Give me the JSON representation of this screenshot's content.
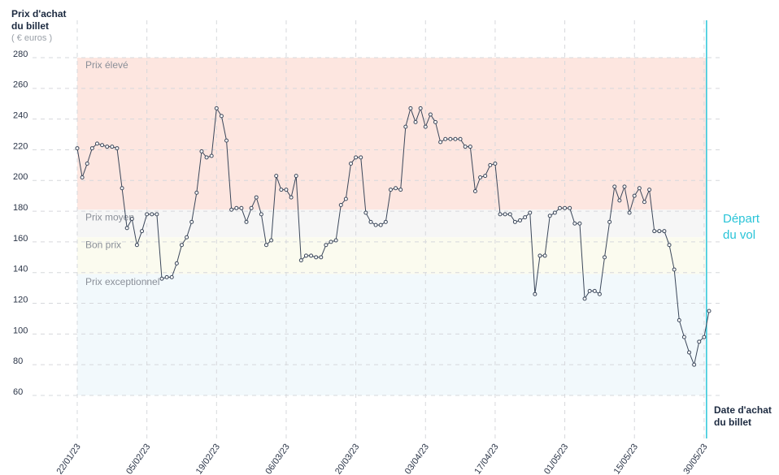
{
  "chart_data": {
    "type": "line",
    "y_label": [
      "Prix d'achat",
      "du billet"
    ],
    "y_unit": "( € euros )",
    "x_label": [
      "Date d'achat",
      "du billet"
    ],
    "annotation": {
      "text": [
        "Départ",
        "du vol"
      ],
      "at": "30/05/23",
      "color": "#29c4d8"
    },
    "ylim": [
      60,
      280
    ],
    "yticks": [
      60,
      80,
      100,
      120,
      140,
      160,
      180,
      200,
      220,
      240,
      260,
      280
    ],
    "grid": true,
    "bands": [
      {
        "label": "Prix élevé",
        "from": 181,
        "to": 280,
        "color": "#fde6e0"
      },
      {
        "label": "Prix moyen",
        "from": 163,
        "to": 181,
        "color": "#f6f6f6"
      },
      {
        "label": "Bon prix",
        "from": 139,
        "to": 163,
        "color": "#fbfbef"
      },
      {
        "label": "Prix exceptionnel",
        "from": 60,
        "to": 139,
        "color": "#f2f9fc"
      }
    ],
    "categories": [
      "22/01/23",
      null,
      null,
      null,
      null,
      null,
      null,
      null,
      null,
      null,
      null,
      null,
      null,
      null,
      "05/02/23",
      null,
      null,
      null,
      null,
      null,
      null,
      null,
      null,
      null,
      null,
      null,
      null,
      null,
      "19/02/23",
      null,
      null,
      null,
      null,
      null,
      null,
      null,
      null,
      null,
      null,
      null,
      null,
      null,
      "06/03/23",
      null,
      null,
      null,
      null,
      null,
      null,
      null,
      null,
      null,
      null,
      null,
      null,
      null,
      "20/03/23",
      null,
      null,
      null,
      null,
      null,
      null,
      null,
      null,
      null,
      null,
      null,
      null,
      null,
      "03/04/23",
      null,
      null,
      null,
      null,
      null,
      null,
      null,
      null,
      null,
      null,
      null,
      null,
      null,
      "17/04/23",
      null,
      null,
      null,
      null,
      null,
      null,
      null,
      null,
      null,
      null,
      null,
      null,
      null,
      "01/05/23",
      null,
      null,
      null,
      null,
      null,
      null,
      null,
      null,
      null,
      null,
      null,
      null,
      null,
      "15/05/23",
      null,
      null,
      null,
      null,
      null,
      null,
      null,
      null,
      null,
      null,
      null,
      null,
      null,
      "30/05/23",
      null
    ],
    "series": [
      {
        "name": "Prix",
        "color": "#3b475a",
        "values": [
          221,
          202,
          211,
          221,
          224,
          223,
          222,
          222,
          221,
          195,
          169,
          175,
          158,
          167,
          178,
          178,
          178,
          136,
          137,
          137,
          146,
          158,
          163,
          173,
          192,
          219,
          215,
          216,
          247,
          242,
          226,
          181,
          182,
          182,
          173,
          182,
          189,
          178,
          158,
          161,
          203,
          194,
          194,
          189,
          203,
          148,
          151,
          151,
          150,
          150,
          158,
          160,
          161,
          184,
          188,
          211,
          215,
          215,
          179,
          173,
          171,
          171,
          173,
          194,
          195,
          194,
          235,
          247,
          238,
          247,
          235,
          243,
          238,
          225,
          227,
          227,
          227,
          227,
          222,
          222,
          193,
          202,
          203,
          210,
          211,
          178,
          178,
          178,
          173,
          174,
          176,
          179,
          126,
          151,
          151,
          177,
          179,
          182,
          182,
          182,
          172,
          172,
          123,
          128,
          128,
          126,
          150,
          173,
          196,
          187,
          196,
          179,
          190,
          195,
          186,
          194,
          167,
          167,
          167,
          158,
          142,
          109,
          98,
          88,
          80,
          95,
          98,
          115
        ]
      }
    ]
  }
}
